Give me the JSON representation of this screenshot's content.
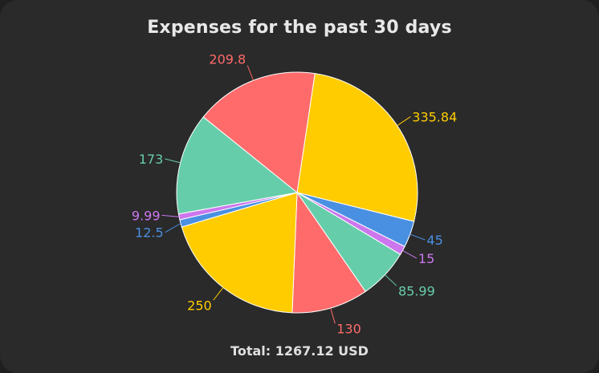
{
  "card": {
    "title": "Expenses for the past 30 days",
    "total_text": "Total: 1267.12 USD"
  },
  "chart_data": {
    "type": "pie",
    "title": "Expenses for the past 30 days",
    "values": [
      335.84,
      45,
      15,
      85.99,
      130,
      250,
      12.5,
      9.99,
      173,
      209.8
    ],
    "labels": [
      "335.84",
      "45",
      "15",
      "85.99",
      "130",
      "250",
      "12.5",
      "9.99",
      "173",
      "209.8"
    ],
    "colors": [
      "#ffcc00",
      "#4a90e2",
      "#cc77ee",
      "#66cdaa",
      "#ff6b6b",
      "#ffcc00",
      "#4a90e2",
      "#cc77ee",
      "#66cdaa",
      "#ff6b6b"
    ],
    "legend": "none"
  },
  "colors": {
    "background": "#2a2a2a",
    "slice_border": "#ffffff",
    "title_text": "#e8e8e8"
  }
}
